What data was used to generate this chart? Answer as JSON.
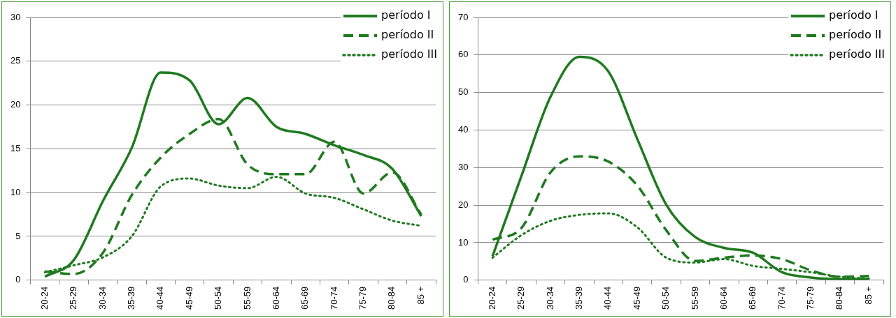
{
  "chart_data": [
    {
      "type": "line",
      "categories": [
        "20-24",
        "25-29",
        "30-34",
        "35-39",
        "40-44",
        "45-49",
        "50-54",
        "55-59",
        "60-64",
        "65-69",
        "70-74",
        "75-79",
        "80-84",
        "85 +"
      ],
      "ylim": [
        0,
        30
      ],
      "yticks": [
        0,
        5,
        10,
        15,
        20,
        25,
        30
      ],
      "grid": "y",
      "legend": "top right",
      "marker": "none",
      "series": [
        {
          "name": "período I",
          "color": "#1f7a1f",
          "line_style": "solid",
          "values": [
            0.4,
            2.3,
            9,
            15.1,
            23.7,
            22.8,
            17.8,
            20.8,
            17.5,
            16.7,
            15.4,
            14.3,
            12.7,
            7.3
          ]
        },
        {
          "name": "período II",
          "color": "#1f7a1f",
          "line_style": "dashed",
          "values": [
            1.0,
            0.7,
            3.1,
            9.7,
            14,
            16.7,
            18.4,
            13.2,
            12.1,
            12.1,
            15.8,
            9.9,
            12.3,
            7.5
          ]
        },
        {
          "name": "período III",
          "color": "#1f7a1f",
          "line_style": "dotted",
          "values": [
            0.9,
            1.7,
            2.6,
            5,
            10.7,
            11.6,
            10.8,
            10.5,
            11.8,
            9.9,
            9.4,
            8.1,
            6.8,
            6.2
          ]
        }
      ]
    },
    {
      "type": "line",
      "categories": [
        "20-24",
        "25-29",
        "30-34",
        "35-39",
        "40-44",
        "45-49",
        "50-54",
        "55-59",
        "60-64",
        "65-69",
        "70-74",
        "75-79",
        "80-84",
        "85 +"
      ],
      "ylim": [
        0,
        70
      ],
      "yticks": [
        0,
        10,
        20,
        30,
        40,
        50,
        60,
        70
      ],
      "grid": "y",
      "legend": "top right",
      "marker": "none",
      "series": [
        {
          "name": "período I",
          "color": "#1f7a1f",
          "line_style": "solid",
          "values": [
            6.4,
            27.8,
            48.8,
            59.5,
            55.6,
            37.6,
            20.1,
            11.5,
            8.6,
            7.3,
            2.1,
            0.7,
            0.3,
            0.3
          ]
        },
        {
          "name": "período II",
          "color": "#1f7a1f",
          "line_style": "dashed",
          "values": [
            10.8,
            13.9,
            28.7,
            33,
            31.6,
            25.2,
            13.3,
            5.1,
            6,
            6.6,
            5.6,
            2.6,
            0.9,
            1.1
          ]
        },
        {
          "name": "período III",
          "color": "#1f7a1f",
          "line_style": "dotted",
          "values": [
            6,
            12,
            15.8,
            17.4,
            17.8,
            14.1,
            6,
            4.7,
            5.6,
            3.8,
            3,
            2.1,
            0.9,
            0.4
          ]
        }
      ]
    }
  ]
}
